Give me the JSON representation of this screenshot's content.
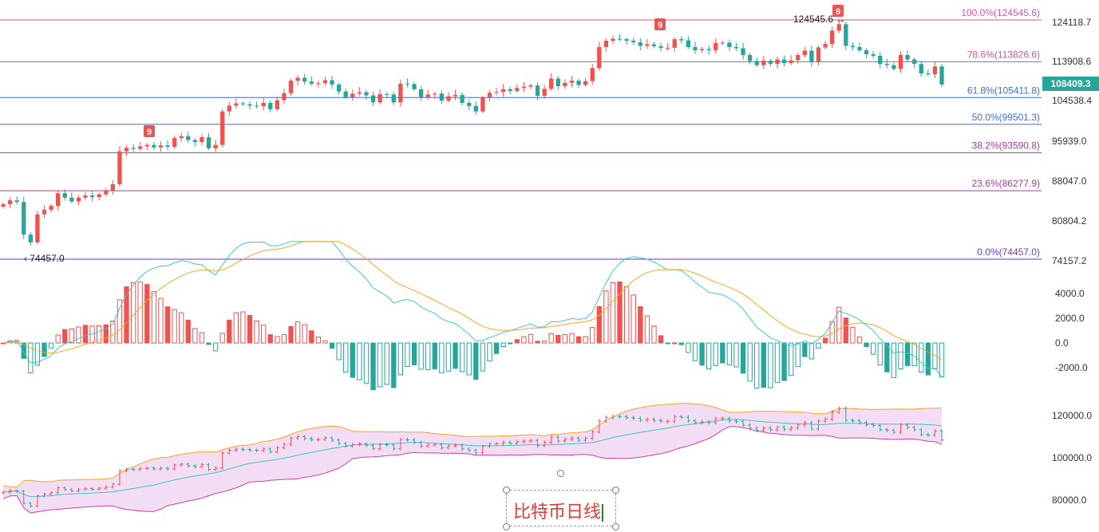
{
  "chart_data": [
    {
      "type": "candlestick",
      "title": "",
      "x": [],
      "price_axis_ticks": [
        "124118.7",
        "113908.6",
        "104538.4",
        "95939.0",
        "88047.0",
        "80804.2",
        "74157.2"
      ],
      "last_price": "108409.3",
      "fib_levels": [
        {
          "label": "100.0%(124545.6)",
          "value": 124545.6,
          "color": "#d4549a"
        },
        {
          "label": "78.6%(113826.6)",
          "value": 113826.6,
          "color": "#d4549a"
        },
        {
          "label": "61.8%(105411.8)",
          "value": 105411.8,
          "color": "#3f6fd1"
        },
        {
          "label": "50.0%(99501.3)",
          "value": 99501.3,
          "color": "#3f6fd1"
        },
        {
          "label": "38.2%(93590.8)",
          "value": 93590.8,
          "color": "#a23ba8"
        },
        {
          "label": "23.6%(86277.9)",
          "value": 86277.9,
          "color": "#a23ba8"
        },
        {
          "label": "0.0%(74457.0)",
          "value": 74457.0,
          "color": "#6a3bbf"
        }
      ],
      "high_label": "124545.6",
      "low_label": "74457.0",
      "marker_text": "9",
      "closes": [
        83800,
        84500,
        84200,
        78500,
        77200,
        82000,
        82800,
        83500,
        85800,
        85000,
        84300,
        85000,
        85400,
        85100,
        85600,
        86200,
        87500,
        93900,
        94600,
        94400,
        94900,
        95200,
        94700,
        95100,
        94800,
        96600,
        97000,
        96200,
        95800,
        96800,
        94500,
        95200,
        102300,
        103600,
        104100,
        103900,
        103600,
        103500,
        104200,
        102800,
        104800,
        106400,
        109300,
        110000,
        109100,
        108600,
        108700,
        109400,
        108400,
        106800,
        105500,
        106300,
        106600,
        105900,
        104300,
        106200,
        106100,
        104300,
        108600,
        108500,
        107300,
        105500,
        106100,
        106300,
        104700,
        105700,
        106000,
        104200,
        103500,
        102300,
        105400,
        106500,
        106700,
        107300,
        106900,
        107600,
        107900,
        108200,
        105800,
        107400,
        109800,
        108000,
        108800,
        109300,
        108300,
        109200,
        112300,
        117500,
        119100,
        119600,
        119500,
        119100,
        118700,
        117800,
        118200,
        117700,
        117300,
        117300,
        119500,
        119200,
        117500,
        116700,
        117000,
        116700,
        118500,
        118600,
        117500,
        117200,
        115500,
        114000,
        113000,
        114100,
        113300,
        114400,
        113500,
        114200,
        115500,
        116600,
        113700,
        117400,
        118300,
        121700,
        123400,
        117800,
        117500,
        116700,
        115700,
        115300,
        113300,
        113000,
        112100,
        115500,
        114400,
        113300,
        111000,
        110800,
        112700,
        108409
      ]
    },
    {
      "type": "macd",
      "axis_ticks": [
        "4000.0",
        "2000.0",
        "0.0",
        "-2000.0"
      ],
      "ylim": [
        -2500,
        4200
      ]
    },
    {
      "type": "bollinger",
      "axis_ticks": [
        "120000.0",
        "100000.0",
        "80000.0"
      ]
    }
  ],
  "annotation": {
    "text": "比特币日线"
  },
  "colors": {
    "up": "#ef5350",
    "down": "#26a69a",
    "macd_fast": "#3fc7c0",
    "macd_slow": "#f5a623",
    "bb_upper": "#f5a623",
    "bb_lower": "#d63fa8",
    "bb_mid": "#3fc7c0",
    "bb_fill": "#f3ddf5"
  }
}
